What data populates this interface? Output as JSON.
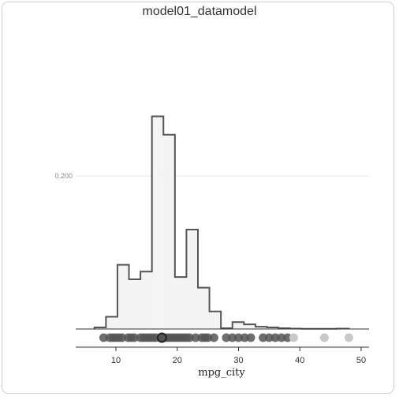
{
  "chart_data": {
    "type": "histogram",
    "title": "model01_datamodel",
    "xlabel": "mpg_city",
    "xlim": [
      5,
      51
    ],
    "ylim": [
      0,
      0.327
    ],
    "xticks": [
      10,
      20,
      30,
      40,
      50
    ],
    "yticks": [
      0.2
    ],
    "ytick_labels": [
      "0.200"
    ],
    "grid": "horizontal",
    "bin_width": 1.875,
    "bins": [
      {
        "x0": 6.5,
        "x1": 8.375,
        "density": 0.002
      },
      {
        "x0": 8.375,
        "x1": 10.25,
        "density": 0.016
      },
      {
        "x0": 10.25,
        "x1": 12.125,
        "density": 0.084
      },
      {
        "x0": 12.125,
        "x1": 14.0,
        "density": 0.065
      },
      {
        "x0": 14.0,
        "x1": 15.875,
        "density": 0.075
      },
      {
        "x0": 15.875,
        "x1": 17.75,
        "density": 0.278
      },
      {
        "x0": 17.75,
        "x1": 19.625,
        "density": 0.254
      },
      {
        "x0": 19.625,
        "x1": 21.5,
        "density": 0.068
      },
      {
        "x0": 21.5,
        "x1": 23.375,
        "density": 0.13
      },
      {
        "x0": 23.375,
        "x1": 25.25,
        "density": 0.054
      },
      {
        "x0": 25.25,
        "x1": 27.125,
        "density": 0.023
      },
      {
        "x0": 27.125,
        "x1": 29.0,
        "density": 0.001
      },
      {
        "x0": 29.0,
        "x1": 30.875,
        "density": 0.009
      },
      {
        "x0": 30.875,
        "x1": 32.75,
        "density": 0.006
      },
      {
        "x0": 32.75,
        "x1": 34.625,
        "density": 0.003
      },
      {
        "x0": 34.625,
        "x1": 36.5,
        "density": 0.002
      },
      {
        "x0": 36.5,
        "x1": 38.375,
        "density": 0.001
      },
      {
        "x0": 38.375,
        "x1": 40.25,
        "density": 0.0005
      },
      {
        "x0": 40.25,
        "x1": 46.0,
        "density": 0.0003
      },
      {
        "x0": 46.0,
        "x1": 48.0,
        "density": 0.0005
      }
    ],
    "points": [
      8,
      9,
      9.5,
      10,
      10.5,
      11,
      12,
      12.5,
      13,
      14,
      14.5,
      15,
      15.5,
      16,
      16.5,
      17.5,
      18,
      18.5,
      19,
      19.5,
      20,
      20.5,
      21,
      21.5,
      22,
      23,
      24,
      24.5,
      25,
      26,
      28,
      29,
      30,
      31,
      32,
      34,
      35,
      36,
      37,
      38,
      39,
      44,
      48
    ],
    "highlight_point": 17.5,
    "colors": {
      "fill": "#f4f4f4",
      "stroke": "#555555",
      "point": "#555555",
      "point_light": "#c8c8c8",
      "highlight_stroke": "#222222",
      "grid": "#e8e8e8"
    }
  }
}
